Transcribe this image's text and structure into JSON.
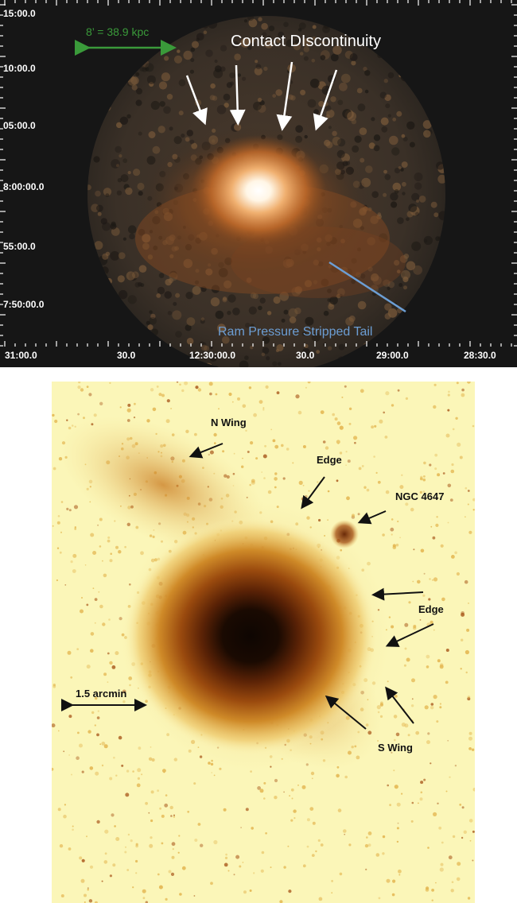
{
  "top_panel": {
    "dec_ticks": [
      "15:00.0",
      "10:00.0",
      "05:00.0",
      "8:00:00.0",
      "55:00.0",
      "7:50:00.0"
    ],
    "ra_ticks": [
      "31:00.0",
      "30.0",
      "12:30:00.0",
      "30.0",
      "29:00.0",
      "28:30.0"
    ],
    "scale_bar_label": "8’ = 38.9 kpc",
    "contact_label": "Contact DIscontinuity",
    "tail_label": "Ram Pressure Stripped Tail",
    "colors": {
      "scale_green": "#3a9a3a",
      "tail_blue": "#6c9ed4",
      "glow_orange": "#d8823a"
    }
  },
  "bottom_panel": {
    "labels": {
      "n_wing": "N Wing",
      "edge_top": "Edge",
      "ngc": "NGC 4647",
      "edge_right": "Edge",
      "s_wing": "S Wing",
      "scale": "1.5 arcmin"
    },
    "colors": {
      "background": "#fbf6b8",
      "core": "#1a0a02"
    }
  }
}
